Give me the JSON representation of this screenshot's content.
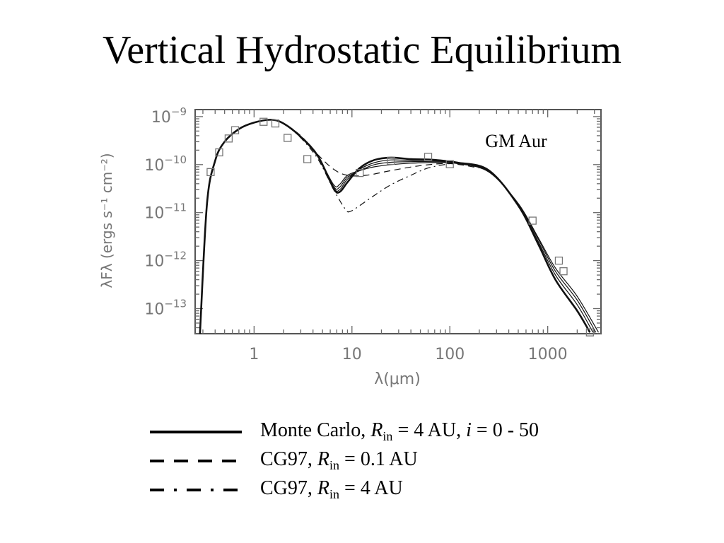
{
  "slide": {
    "title": "Vertical Hydrostatic Equilibrium"
  },
  "chart_data": {
    "type": "line",
    "x_scale": "log",
    "y_scale": "log",
    "xlabel": "λ(μm)",
    "ylabel": "λFλ (ergs s⁻¹ cm⁻²)",
    "xlim": [
      0.25,
      3500
    ],
    "ylim": [
      3e-14,
      1.4e-09
    ],
    "x_ticks": [
      {
        "value": 1,
        "label": "1"
      },
      {
        "value": 10,
        "label": "10"
      },
      {
        "value": 100,
        "label": "100"
      },
      {
        "value": 1000,
        "label": "1000"
      }
    ],
    "y_ticks": [
      {
        "value": 1e-09,
        "base": "10",
        "exp": "−9"
      },
      {
        "value": 1e-10,
        "base": "10",
        "exp": "−10"
      },
      {
        "value": 1e-11,
        "base": "10",
        "exp": "−11"
      },
      {
        "value": 1e-12,
        "base": "10",
        "exp": "−12"
      },
      {
        "value": 1e-13,
        "base": "10",
        "exp": "−13"
      }
    ],
    "annotation": "GM Aur",
    "series": [
      {
        "style": "solid",
        "weight": "heavy",
        "points": [
          [
            0.28,
            3e-14
          ],
          [
            0.33,
            1.5e-11
          ],
          [
            0.4,
            1.2e-10
          ],
          [
            0.5,
            3e-10
          ],
          [
            0.7,
            5.5e-10
          ],
          [
            1.0,
            7.5e-10
          ],
          [
            1.5,
            8.6e-10
          ],
          [
            2.0,
            7.2e-10
          ],
          [
            3.0,
            3.8e-10
          ],
          [
            4.5,
            1.5e-10
          ],
          [
            6.5,
            3.2e-11
          ],
          [
            7.5,
            2.7e-11
          ],
          [
            9,
            4.3e-11
          ],
          [
            12,
            8.5e-11
          ],
          [
            17,
            1.25e-10
          ],
          [
            25,
            1.4e-10
          ],
          [
            40,
            1.3e-10
          ],
          [
            70,
            1.25e-10
          ],
          [
            120,
            1.1e-10
          ],
          [
            250,
            7.6e-11
          ],
          [
            500,
            1.4e-11
          ],
          [
            800,
            2.2e-12
          ],
          [
            1200,
            4e-13
          ],
          [
            2000,
            9e-14
          ],
          [
            2700,
            3.2e-14
          ]
        ]
      },
      {
        "style": "solid",
        "weight": "thin",
        "points": [
          [
            0.28,
            3e-14
          ],
          [
            0.33,
            1.5e-11
          ],
          [
            0.4,
            1.2e-10
          ],
          [
            0.5,
            3e-10
          ],
          [
            0.7,
            5.5e-10
          ],
          [
            1.0,
            7.5e-10
          ],
          [
            1.5,
            8.5e-10
          ],
          [
            2.0,
            7.1e-10
          ],
          [
            3.0,
            3.7e-10
          ],
          [
            4.5,
            1.45e-10
          ],
          [
            6.5,
            3.3e-11
          ],
          [
            7.5,
            3e-11
          ],
          [
            9,
            5e-11
          ],
          [
            12,
            8e-11
          ],
          [
            17,
            1.1e-10
          ],
          [
            25,
            1.25e-10
          ],
          [
            40,
            1.22e-10
          ],
          [
            70,
            1.2e-10
          ],
          [
            120,
            1.1e-10
          ],
          [
            250,
            7.4e-11
          ],
          [
            500,
            1.45e-11
          ],
          [
            800,
            2.5e-12
          ],
          [
            1200,
            5e-13
          ],
          [
            2000,
            1.2e-13
          ],
          [
            2900,
            3.2e-14
          ]
        ]
      },
      {
        "style": "solid",
        "weight": "thin",
        "points": [
          [
            0.28,
            3e-14
          ],
          [
            0.33,
            1.5e-11
          ],
          [
            0.4,
            1.2e-10
          ],
          [
            0.5,
            3e-10
          ],
          [
            0.7,
            5.5e-10
          ],
          [
            1.0,
            7.5e-10
          ],
          [
            1.5,
            8.5e-10
          ],
          [
            2.0,
            7.1e-10
          ],
          [
            3.0,
            3.7e-10
          ],
          [
            4.5,
            1.45e-10
          ],
          [
            6.5,
            3.5e-11
          ],
          [
            7.5,
            3.4e-11
          ],
          [
            9,
            5.5e-11
          ],
          [
            12,
            7.5e-11
          ],
          [
            17,
            1e-10
          ],
          [
            25,
            1.12e-10
          ],
          [
            40,
            1.15e-10
          ],
          [
            70,
            1.15e-10
          ],
          [
            120,
            1.08e-10
          ],
          [
            250,
            7.2e-11
          ],
          [
            500,
            1.5e-11
          ],
          [
            800,
            2.8e-12
          ],
          [
            1200,
            6e-13
          ],
          [
            2000,
            1.5e-13
          ],
          [
            3100,
            3.2e-14
          ]
        ]
      },
      {
        "style": "solid",
        "weight": "thin",
        "points": [
          [
            0.28,
            3e-14
          ],
          [
            0.33,
            1.5e-11
          ],
          [
            0.4,
            1.2e-10
          ],
          [
            0.5,
            3e-10
          ],
          [
            0.7,
            5.5e-10
          ],
          [
            1.0,
            7.5e-10
          ],
          [
            1.5,
            8.5e-10
          ],
          [
            2.0,
            7.1e-10
          ],
          [
            3.0,
            3.7e-10
          ],
          [
            4.5,
            1.45e-10
          ],
          [
            6.5,
            3.8e-11
          ],
          [
            7.5,
            3.9e-11
          ],
          [
            9,
            6e-11
          ],
          [
            12,
            7.5e-11
          ],
          [
            17,
            9e-11
          ],
          [
            25,
            1e-10
          ],
          [
            40,
            1.07e-10
          ],
          [
            70,
            1.1e-10
          ],
          [
            120,
            1.05e-10
          ],
          [
            250,
            7e-11
          ],
          [
            500,
            1.55e-11
          ],
          [
            800,
            3e-12
          ],
          [
            1200,
            7e-13
          ],
          [
            2000,
            1.8e-13
          ],
          [
            3300,
            3.2e-14
          ]
        ]
      },
      {
        "style": "dashed",
        "weight": "thin",
        "points": [
          [
            0.28,
            3e-14
          ],
          [
            0.33,
            1.5e-11
          ],
          [
            0.4,
            1.2e-10
          ],
          [
            0.5,
            3e-10
          ],
          [
            0.7,
            5.5e-10
          ],
          [
            1.0,
            7.5e-10
          ],
          [
            1.5,
            8.5e-10
          ],
          [
            2.0,
            7.1e-10
          ],
          [
            3.0,
            4e-10
          ],
          [
            4.5,
            1.6e-10
          ],
          [
            6.5,
            8e-11
          ],
          [
            9,
            6e-11
          ],
          [
            14,
            6e-11
          ],
          [
            25,
            7.5e-11
          ],
          [
            50,
            9.5e-11
          ],
          [
            100,
            1.05e-10
          ],
          [
            200,
            8.5e-11
          ]
        ]
      },
      {
        "style": "dashdot",
        "weight": "thin",
        "points": [
          [
            0.28,
            3e-14
          ],
          [
            0.33,
            1.5e-11
          ],
          [
            0.4,
            1.2e-10
          ],
          [
            0.5,
            3e-10
          ],
          [
            0.7,
            5.5e-10
          ],
          [
            1.0,
            7.5e-10
          ],
          [
            1.5,
            8.5e-10
          ],
          [
            2.0,
            7.1e-10
          ],
          [
            3.0,
            3.6e-10
          ],
          [
            4.5,
            1.3e-10
          ],
          [
            6.5,
            3e-11
          ],
          [
            8.5,
            1.2e-11
          ],
          [
            9.5,
            1.05e-11
          ],
          [
            12,
            1.4e-11
          ],
          [
            17,
            2.3e-11
          ],
          [
            25,
            3.8e-11
          ],
          [
            40,
            6e-11
          ],
          [
            60,
            8.5e-11
          ],
          [
            100,
            1.05e-10
          ]
        ]
      }
    ],
    "observed": [
      [
        0.36,
        7e-11
      ],
      [
        0.44,
        1.8e-10
      ],
      [
        0.55,
        3.5e-10
      ],
      [
        0.64,
        5.2e-10
      ],
      [
        1.25,
        7.8e-10
      ],
      [
        1.65,
        7.2e-10
      ],
      [
        2.2,
        3.6e-10
      ],
      [
        3.5,
        1.3e-10
      ],
      [
        12,
        6.7e-11
      ],
      [
        25,
        1.2e-10
      ],
      [
        60,
        1.45e-10
      ],
      [
        100,
        1.02e-10
      ],
      [
        700,
        6.8e-12
      ],
      [
        1300,
        1e-12
      ],
      [
        1450,
        6e-13
      ],
      [
        2700,
        3.2e-14
      ]
    ],
    "legend": [
      {
        "style": "solid",
        "label_pre": "Monte Carlo, ",
        "label_var": "R",
        "label_sub": "in",
        "label_mid": " = 4 AU, ",
        "label_var2": "i",
        "label_post": " = 0 - 50"
      },
      {
        "style": "dashed",
        "label_pre": "CG97, ",
        "label_var": "R",
        "label_sub": "in",
        "label_mid": " = 0.1 AU"
      },
      {
        "style": "dashdot",
        "label_pre": "CG97, ",
        "label_var": "R",
        "label_sub": "in",
        "label_mid": " = 4 AU"
      }
    ]
  }
}
